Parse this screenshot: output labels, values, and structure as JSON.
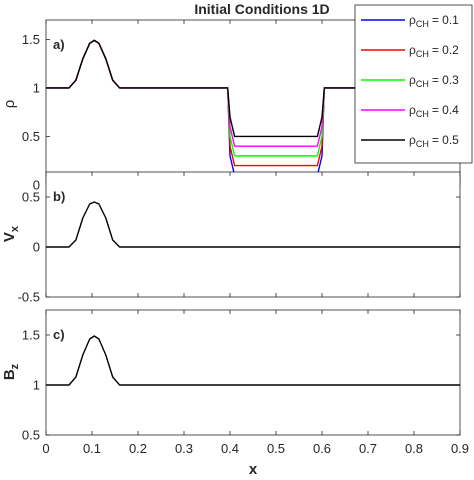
{
  "chart_data": [
    {
      "type": "line",
      "panel": "a)",
      "title": "Initial Conditions 1D",
      "ylabel": "ρ",
      "ylim": [
        0,
        1.7
      ],
      "yticks": [
        "0",
        "0.5",
        "1",
        "1.5"
      ],
      "xlim": [
        0,
        0.9
      ],
      "grid": false,
      "legend_position": "top-right",
      "series": [
        {
          "name_base": "ρ",
          "name_sub": "CH",
          "name_value": "= 0.1",
          "color": "#0000ff",
          "x": [
            0,
            0.05,
            0.065,
            0.08,
            0.095,
            0.105,
            0.115,
            0.13,
            0.145,
            0.16,
            0.395,
            0.4,
            0.41,
            0.59,
            0.6,
            0.605,
            0.9
          ],
          "y": [
            1,
            1,
            1.08,
            1.3,
            1.46,
            1.49,
            1.46,
            1.3,
            1.08,
            1,
            1,
            0.3,
            0.1,
            0.1,
            0.3,
            1,
            1
          ]
        },
        {
          "name_base": "ρ",
          "name_sub": "CH",
          "name_value": "= 0.2",
          "color": "#ff0000",
          "x": [
            0,
            0.05,
            0.065,
            0.08,
            0.095,
            0.105,
            0.115,
            0.13,
            0.145,
            0.16,
            0.395,
            0.4,
            0.41,
            0.59,
            0.6,
            0.605,
            0.9
          ],
          "y": [
            1,
            1,
            1.08,
            1.3,
            1.46,
            1.49,
            1.46,
            1.3,
            1.08,
            1,
            1,
            0.4,
            0.2,
            0.2,
            0.4,
            1,
            1
          ]
        },
        {
          "name_base": "ρ",
          "name_sub": "CH",
          "name_value": "= 0.3",
          "color": "#00ff00",
          "x": [
            0,
            0.05,
            0.065,
            0.08,
            0.095,
            0.105,
            0.115,
            0.13,
            0.145,
            0.16,
            0.395,
            0.4,
            0.41,
            0.59,
            0.6,
            0.605,
            0.9
          ],
          "y": [
            1,
            1,
            1.08,
            1.3,
            1.46,
            1.49,
            1.46,
            1.3,
            1.08,
            1,
            1,
            0.5,
            0.3,
            0.3,
            0.5,
            1,
            1
          ]
        },
        {
          "name_base": "ρ",
          "name_sub": "CH",
          "name_value": "= 0.4",
          "color": "#ff00ff",
          "x": [
            0,
            0.05,
            0.065,
            0.08,
            0.095,
            0.105,
            0.115,
            0.13,
            0.145,
            0.16,
            0.395,
            0.4,
            0.41,
            0.59,
            0.6,
            0.605,
            0.9
          ],
          "y": [
            1,
            1,
            1.08,
            1.3,
            1.46,
            1.49,
            1.46,
            1.3,
            1.08,
            1,
            1,
            0.6,
            0.4,
            0.4,
            0.6,
            1,
            1
          ]
        },
        {
          "name_base": "ρ",
          "name_sub": "CH",
          "name_value": "= 0.5",
          "color": "#000000",
          "x": [
            0,
            0.05,
            0.065,
            0.08,
            0.095,
            0.105,
            0.115,
            0.13,
            0.145,
            0.16,
            0.395,
            0.4,
            0.41,
            0.59,
            0.6,
            0.605,
            0.9
          ],
          "y": [
            1,
            1,
            1.08,
            1.3,
            1.46,
            1.49,
            1.46,
            1.3,
            1.08,
            1,
            1,
            0.7,
            0.5,
            0.5,
            0.7,
            1,
            1
          ]
        }
      ]
    },
    {
      "type": "line",
      "panel": "b)",
      "ylabel_base": "V",
      "ylabel_sub": "x",
      "ylim": [
        -0.5,
        0.75
      ],
      "yticks": [
        "-0.5",
        "0",
        "0.5"
      ],
      "xlim": [
        0,
        0.9
      ],
      "grid": false,
      "series": [
        {
          "color": "#000000",
          "x": [
            0,
            0.05,
            0.065,
            0.08,
            0.095,
            0.105,
            0.115,
            0.13,
            0.145,
            0.16,
            0.9
          ],
          "y": [
            0,
            0,
            0.07,
            0.29,
            0.43,
            0.45,
            0.43,
            0.29,
            0.07,
            0,
            0
          ]
        }
      ]
    },
    {
      "type": "line",
      "panel": "c)",
      "ylabel_base": "B",
      "ylabel_sub": "z",
      "ylim": [
        0.5,
        1.75
      ],
      "yticks": [
        "0.5",
        "1",
        "1.5"
      ],
      "xlim": [
        0,
        0.9
      ],
      "xticks": [
        "0",
        "0.1",
        "0.2",
        "0.3",
        "0.4",
        "0.5",
        "0.6",
        "0.7",
        "0.8",
        "0.9"
      ],
      "xlabel": "x",
      "grid": false,
      "series": [
        {
          "color": "#000000",
          "x": [
            0,
            0.05,
            0.065,
            0.08,
            0.095,
            0.105,
            0.115,
            0.13,
            0.145,
            0.16,
            0.9
          ],
          "y": [
            1,
            1,
            1.08,
            1.3,
            1.46,
            1.49,
            1.46,
            1.3,
            1.08,
            1,
            1
          ]
        }
      ]
    }
  ]
}
